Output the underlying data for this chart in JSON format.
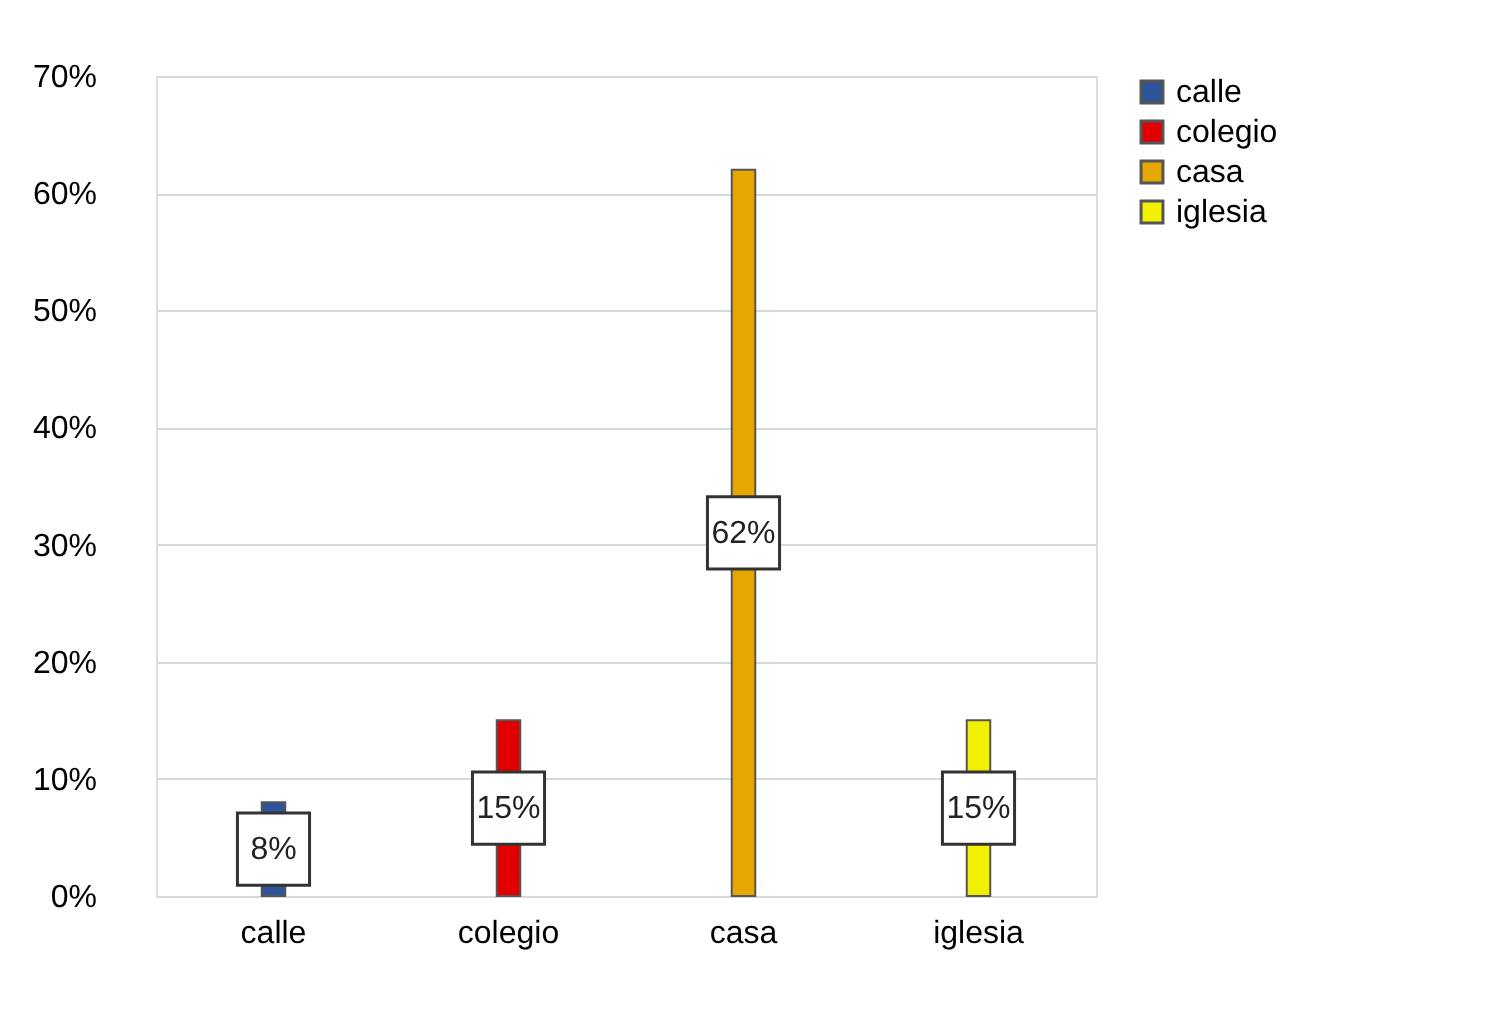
{
  "chart_data": {
    "type": "bar",
    "categories": [
      "calle",
      "colegio",
      "casa",
      "iglesia"
    ],
    "series": [
      {
        "name": "calle",
        "color": "#2e5597",
        "values": [
          8,
          null,
          null,
          null
        ],
        "value_labels": [
          "8%",
          null,
          null,
          null
        ]
      },
      {
        "name": "colegio",
        "color": "#e00000",
        "values": [
          null,
          15,
          null,
          null
        ],
        "value_labels": [
          null,
          "15%",
          null,
          null
        ]
      },
      {
        "name": "casa",
        "color": "#e6a800",
        "values": [
          null,
          null,
          62,
          null
        ],
        "value_labels": [
          null,
          null,
          "62%",
          null
        ]
      },
      {
        "name": "iglesia",
        "color": "#f0f000",
        "values": [
          null,
          null,
          null,
          15
        ],
        "value_labels": [
          null,
          null,
          null,
          "15%"
        ]
      }
    ],
    "ylim": [
      0,
      70
    ],
    "yticks": [
      {
        "value": 0,
        "label": "0%"
      },
      {
        "value": 10,
        "label": "10%"
      },
      {
        "value": 20,
        "label": "20%"
      },
      {
        "value": 30,
        "label": "30%"
      },
      {
        "value": 40,
        "label": "40%"
      },
      {
        "value": 50,
        "label": "50%"
      },
      {
        "value": 60,
        "label": "60%"
      },
      {
        "value": 70,
        "label": "70%"
      }
    ],
    "grid": "y",
    "legend": "right"
  }
}
